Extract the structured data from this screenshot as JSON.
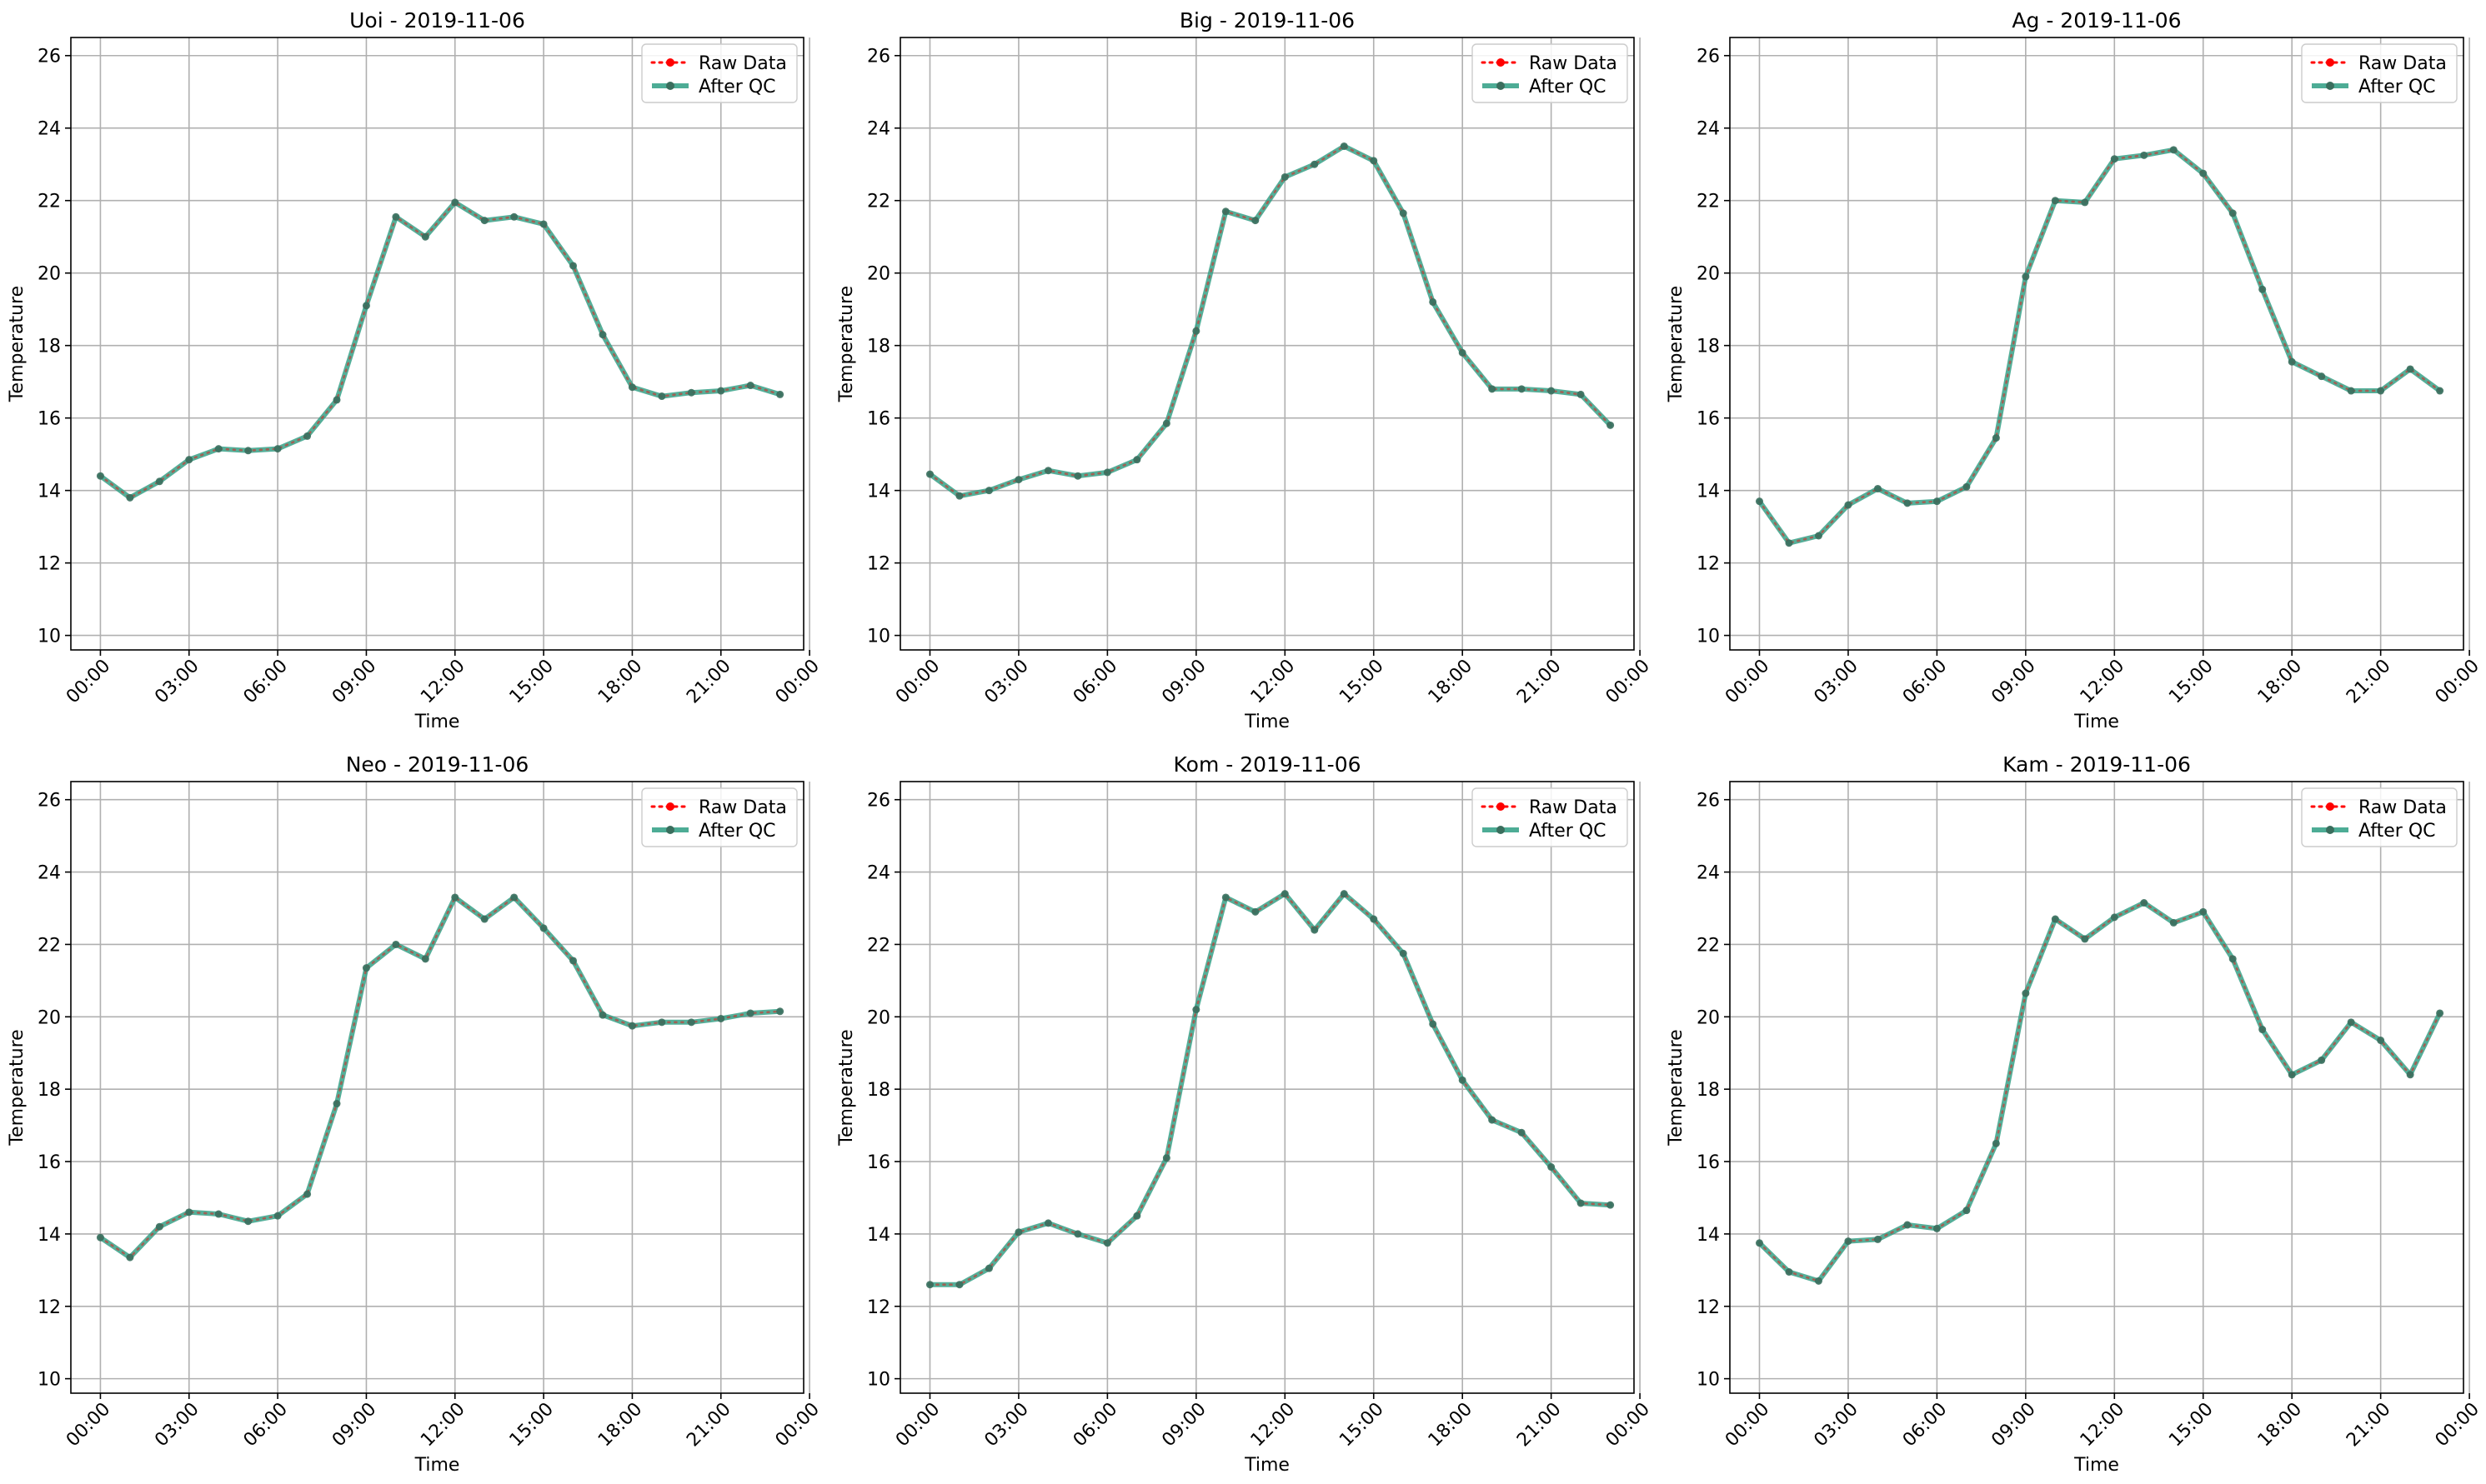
{
  "chart_data": [
    {
      "type": "line",
      "title": "Uoi - 2019-11-06",
      "xlabel": "Time",
      "ylabel": "Temperature",
      "ylim": [
        9.6,
        26.5
      ],
      "xlim_hours": [
        -1.0,
        23.8
      ],
      "yticks": [
        10,
        12,
        14,
        16,
        18,
        20,
        22,
        24,
        26
      ],
      "xticks": [
        0,
        3,
        6,
        9,
        12,
        15,
        18,
        21,
        24
      ],
      "xtick_labels": [
        "00:00",
        "03:00",
        "06:00",
        "09:00",
        "12:00",
        "15:00",
        "18:00",
        "21:00",
        "00:00"
      ],
      "grid": true,
      "legend_position": "top-right",
      "x": [
        "00:00",
        "01:00",
        "02:00",
        "03:00",
        "04:00",
        "05:00",
        "06:00",
        "07:00",
        "08:00",
        "09:00",
        "10:00",
        "11:00",
        "12:00",
        "13:00",
        "14:00",
        "15:00",
        "16:00",
        "17:00",
        "18:00",
        "19:00",
        "20:00",
        "21:00",
        "22:00",
        "23:00"
      ],
      "series": [
        {
          "name": "Raw Data",
          "color": "#ff0000",
          "values": [
            14.4,
            13.8,
            14.25,
            14.85,
            15.15,
            15.1,
            15.15,
            15.5,
            16.5,
            19.1,
            21.55,
            21.0,
            21.95,
            21.45,
            21.55,
            21.35,
            20.2,
            18.3,
            16.85,
            16.6,
            16.7,
            16.75,
            16.9,
            16.65
          ]
        },
        {
          "name": "After QC",
          "color": "#2e9e82",
          "values": [
            14.4,
            13.8,
            14.25,
            14.85,
            15.15,
            15.1,
            15.15,
            15.5,
            16.5,
            19.1,
            21.55,
            21.0,
            21.95,
            21.45,
            21.55,
            21.35,
            20.2,
            18.3,
            16.85,
            16.6,
            16.7,
            16.75,
            16.9,
            16.65
          ]
        }
      ]
    },
    {
      "type": "line",
      "title": "Big - 2019-11-06",
      "xlabel": "Time",
      "ylabel": "Temperature",
      "ylim": [
        9.6,
        26.5
      ],
      "xlim_hours": [
        -1.0,
        23.8
      ],
      "yticks": [
        10,
        12,
        14,
        16,
        18,
        20,
        22,
        24,
        26
      ],
      "xticks": [
        0,
        3,
        6,
        9,
        12,
        15,
        18,
        21,
        24
      ],
      "xtick_labels": [
        "00:00",
        "03:00",
        "06:00",
        "09:00",
        "12:00",
        "15:00",
        "18:00",
        "21:00",
        "00:00"
      ],
      "grid": true,
      "legend_position": "top-right",
      "x": [
        "00:00",
        "01:00",
        "02:00",
        "03:00",
        "04:00",
        "05:00",
        "06:00",
        "07:00",
        "08:00",
        "09:00",
        "10:00",
        "11:00",
        "12:00",
        "13:00",
        "14:00",
        "15:00",
        "16:00",
        "17:00",
        "18:00",
        "19:00",
        "20:00",
        "21:00",
        "22:00",
        "23:00"
      ],
      "series": [
        {
          "name": "Raw Data",
          "color": "#ff0000",
          "values": [
            14.45,
            13.85,
            14.0,
            14.3,
            14.55,
            14.4,
            14.5,
            14.85,
            15.85,
            18.4,
            21.7,
            21.45,
            22.65,
            23.0,
            23.5,
            23.1,
            21.65,
            19.2,
            17.8,
            16.8,
            16.8,
            16.75,
            16.65,
            15.8
          ]
        },
        {
          "name": "After QC",
          "color": "#2e9e82",
          "values": [
            14.45,
            13.85,
            14.0,
            14.3,
            14.55,
            14.4,
            14.5,
            14.85,
            15.85,
            18.4,
            21.7,
            21.45,
            22.65,
            23.0,
            23.5,
            23.1,
            21.65,
            19.2,
            17.8,
            16.8,
            16.8,
            16.75,
            16.65,
            15.8
          ]
        }
      ]
    },
    {
      "type": "line",
      "title": "Ag - 2019-11-06",
      "xlabel": "Time",
      "ylabel": "Temperature",
      "ylim": [
        9.6,
        26.5
      ],
      "xlim_hours": [
        -1.0,
        23.8
      ],
      "yticks": [
        10,
        12,
        14,
        16,
        18,
        20,
        22,
        24,
        26
      ],
      "xticks": [
        0,
        3,
        6,
        9,
        12,
        15,
        18,
        21,
        24
      ],
      "xtick_labels": [
        "00:00",
        "03:00",
        "06:00",
        "09:00",
        "12:00",
        "15:00",
        "18:00",
        "21:00",
        "00:00"
      ],
      "grid": true,
      "legend_position": "top-right",
      "x": [
        "00:00",
        "01:00",
        "02:00",
        "03:00",
        "04:00",
        "05:00",
        "06:00",
        "07:00",
        "08:00",
        "09:00",
        "10:00",
        "11:00",
        "12:00",
        "13:00",
        "14:00",
        "15:00",
        "16:00",
        "17:00",
        "18:00",
        "19:00",
        "20:00",
        "21:00",
        "22:00",
        "23:00"
      ],
      "series": [
        {
          "name": "Raw Data",
          "color": "#ff0000",
          "values": [
            13.7,
            12.55,
            12.75,
            13.6,
            14.05,
            13.65,
            13.7,
            14.1,
            15.45,
            19.9,
            22.0,
            21.95,
            23.15,
            23.25,
            23.4,
            22.75,
            21.65,
            19.55,
            17.55,
            17.15,
            16.75,
            16.75,
            17.35,
            16.75
          ]
        },
        {
          "name": "After QC",
          "color": "#2e9e82",
          "values": [
            13.7,
            12.55,
            12.75,
            13.6,
            14.05,
            13.65,
            13.7,
            14.1,
            15.45,
            19.9,
            22.0,
            21.95,
            23.15,
            23.25,
            23.4,
            22.75,
            21.65,
            19.55,
            17.55,
            17.15,
            16.75,
            16.75,
            17.35,
            16.75
          ]
        }
      ]
    },
    {
      "type": "line",
      "title": "Neo - 2019-11-06",
      "xlabel": "Time",
      "ylabel": "Temperature",
      "ylim": [
        9.6,
        26.5
      ],
      "xlim_hours": [
        -1.0,
        23.8
      ],
      "yticks": [
        10,
        12,
        14,
        16,
        18,
        20,
        22,
        24,
        26
      ],
      "xticks": [
        0,
        3,
        6,
        9,
        12,
        15,
        18,
        21,
        24
      ],
      "xtick_labels": [
        "00:00",
        "03:00",
        "06:00",
        "09:00",
        "12:00",
        "15:00",
        "18:00",
        "21:00",
        "00:00"
      ],
      "grid": true,
      "legend_position": "top-right",
      "x": [
        "00:00",
        "01:00",
        "02:00",
        "03:00",
        "04:00",
        "05:00",
        "06:00",
        "07:00",
        "08:00",
        "09:00",
        "10:00",
        "11:00",
        "12:00",
        "13:00",
        "14:00",
        "15:00",
        "16:00",
        "17:00",
        "18:00",
        "19:00",
        "20:00",
        "21:00",
        "22:00",
        "23:00"
      ],
      "series": [
        {
          "name": "Raw Data",
          "color": "#ff0000",
          "values": [
            13.9,
            13.35,
            14.2,
            14.6,
            14.55,
            14.35,
            14.5,
            15.1,
            17.6,
            21.35,
            22.0,
            21.6,
            23.3,
            22.7,
            23.3,
            22.45,
            21.55,
            20.05,
            19.75,
            19.85,
            19.85,
            19.95,
            20.1,
            20.15
          ]
        },
        {
          "name": "After QC",
          "color": "#2e9e82",
          "values": [
            13.9,
            13.35,
            14.2,
            14.6,
            14.55,
            14.35,
            14.5,
            15.1,
            17.6,
            21.35,
            22.0,
            21.6,
            23.3,
            22.7,
            23.3,
            22.45,
            21.55,
            20.05,
            19.75,
            19.85,
            19.85,
            19.95,
            20.1,
            20.15
          ]
        }
      ]
    },
    {
      "type": "line",
      "title": "Kom - 2019-11-06",
      "xlabel": "Time",
      "ylabel": "Temperature",
      "ylim": [
        9.6,
        26.5
      ],
      "xlim_hours": [
        -1.0,
        23.8
      ],
      "yticks": [
        10,
        12,
        14,
        16,
        18,
        20,
        22,
        24,
        26
      ],
      "xticks": [
        0,
        3,
        6,
        9,
        12,
        15,
        18,
        21,
        24
      ],
      "xtick_labels": [
        "00:00",
        "03:00",
        "06:00",
        "09:00",
        "12:00",
        "15:00",
        "18:00",
        "21:00",
        "00:00"
      ],
      "grid": true,
      "legend_position": "top-right",
      "x": [
        "00:00",
        "01:00",
        "02:00",
        "03:00",
        "04:00",
        "05:00",
        "06:00",
        "07:00",
        "08:00",
        "09:00",
        "10:00",
        "11:00",
        "12:00",
        "13:00",
        "14:00",
        "15:00",
        "16:00",
        "17:00",
        "18:00",
        "19:00",
        "20:00",
        "21:00",
        "22:00",
        "23:00"
      ],
      "series": [
        {
          "name": "Raw Data",
          "color": "#ff0000",
          "values": [
            12.6,
            12.6,
            13.05,
            14.05,
            14.3,
            14.0,
            13.75,
            14.5,
            16.1,
            20.2,
            23.3,
            22.9,
            23.4,
            22.4,
            23.4,
            22.7,
            21.75,
            19.8,
            18.25,
            17.15,
            16.8,
            15.85,
            14.85,
            14.8
          ]
        },
        {
          "name": "After QC",
          "color": "#2e9e82",
          "values": [
            12.6,
            12.6,
            13.05,
            14.05,
            14.3,
            14.0,
            13.75,
            14.5,
            16.1,
            20.2,
            23.3,
            22.9,
            23.4,
            22.4,
            23.4,
            22.7,
            21.75,
            19.8,
            18.25,
            17.15,
            16.8,
            15.85,
            14.85,
            14.8
          ]
        }
      ]
    },
    {
      "type": "line",
      "title": "Kam - 2019-11-06",
      "xlabel": "Time",
      "ylabel": "Temperature",
      "ylim": [
        9.6,
        26.5
      ],
      "xlim_hours": [
        -1.0,
        23.8
      ],
      "yticks": [
        10,
        12,
        14,
        16,
        18,
        20,
        22,
        24,
        26
      ],
      "xticks": [
        0,
        3,
        6,
        9,
        12,
        15,
        18,
        21,
        24
      ],
      "xtick_labels": [
        "00:00",
        "03:00",
        "06:00",
        "09:00",
        "12:00",
        "15:00",
        "18:00",
        "21:00",
        "00:00"
      ],
      "grid": true,
      "legend_position": "top-right",
      "x": [
        "00:00",
        "01:00",
        "02:00",
        "03:00",
        "04:00",
        "05:00",
        "06:00",
        "07:00",
        "08:00",
        "09:00",
        "10:00",
        "11:00",
        "12:00",
        "13:00",
        "14:00",
        "15:00",
        "16:00",
        "17:00",
        "18:00",
        "19:00",
        "20:00",
        "21:00",
        "22:00",
        "23:00"
      ],
      "series": [
        {
          "name": "Raw Data",
          "color": "#ff0000",
          "values": [
            13.75,
            12.95,
            12.7,
            13.8,
            13.85,
            14.25,
            14.15,
            14.65,
            16.5,
            20.65,
            22.7,
            22.15,
            22.75,
            23.15,
            22.6,
            22.9,
            21.6,
            19.65,
            18.4,
            18.8,
            19.85,
            19.35,
            18.4,
            20.1
          ]
        },
        {
          "name": "After QC",
          "color": "#2e9e82",
          "values": [
            13.75,
            12.95,
            12.7,
            13.8,
            13.85,
            14.25,
            14.15,
            14.65,
            16.5,
            20.65,
            22.7,
            22.15,
            22.75,
            23.15,
            22.6,
            22.9,
            21.6,
            19.65,
            18.4,
            18.8,
            19.85,
            19.35,
            18.4,
            20.1
          ]
        }
      ]
    }
  ]
}
